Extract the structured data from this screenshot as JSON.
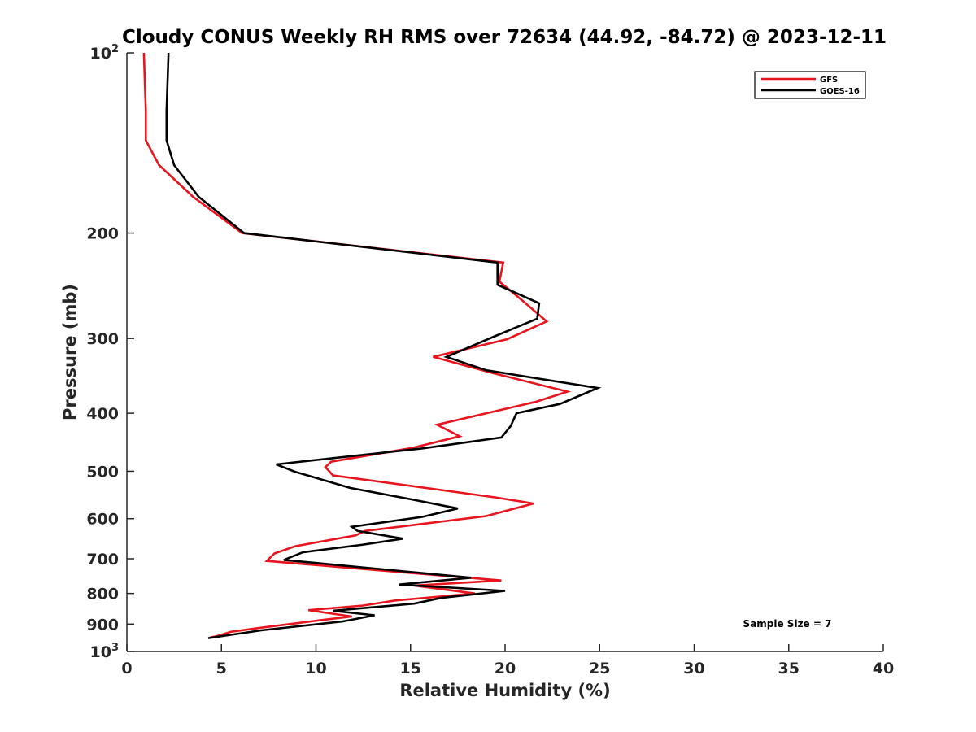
{
  "chart_data": {
    "type": "line",
    "title": "Cloudy CONUS Weekly RH RMS over 72634 (44.92, -84.72) @ 2023-12-11",
    "xlabel": "Relative Humidity (%)",
    "ylabel": "Pressure (mb)",
    "xlim": [
      0,
      40
    ],
    "ylim": [
      100,
      1000
    ],
    "y_scale": "log",
    "y_reversed": true,
    "x_ticks": [
      "0",
      "5",
      "10",
      "15",
      "20",
      "25",
      "30",
      "35",
      "40"
    ],
    "y_ticks": [
      {
        "value": 100,
        "base": "10",
        "exp": "2"
      },
      {
        "value": 200,
        "label": "200"
      },
      {
        "value": 300,
        "label": "300"
      },
      {
        "value": 400,
        "label": "400"
      },
      {
        "value": 500,
        "label": "500"
      },
      {
        "value": 600,
        "label": "600"
      },
      {
        "value": 700,
        "label": "700"
      },
      {
        "value": 800,
        "label": "800"
      },
      {
        "value": 900,
        "label": "900"
      },
      {
        "value": 1000,
        "base": "10",
        "exp": "3"
      }
    ],
    "grid": false,
    "legend_position": "top-right",
    "annotation": "Sample Size = 7",
    "series": [
      {
        "name": "GFS",
        "color": "#e8141e",
        "points": [
          [
            0.9,
            100
          ],
          [
            1.0,
            125
          ],
          [
            1.0,
            140
          ],
          [
            1.7,
            154
          ],
          [
            3.5,
            174
          ],
          [
            6.1,
            200
          ],
          [
            19.9,
            224
          ],
          [
            19.7,
            241
          ],
          [
            20.9,
            259
          ],
          [
            22.2,
            281
          ],
          [
            20.1,
            301
          ],
          [
            16.2,
            322
          ],
          [
            19.4,
            343
          ],
          [
            23.3,
            368
          ],
          [
            21.6,
            383
          ],
          [
            16.4,
            418
          ],
          [
            17.6,
            437
          ],
          [
            15.1,
            457
          ],
          [
            10.8,
            482
          ],
          [
            10.5,
            492
          ],
          [
            10.9,
            508
          ],
          [
            19.5,
            553
          ],
          [
            21.5,
            566
          ],
          [
            19.0,
            594
          ],
          [
            12.6,
            629
          ],
          [
            12.1,
            640
          ],
          [
            8.9,
            667
          ],
          [
            7.8,
            686
          ],
          [
            7.4,
            706
          ],
          [
            19.8,
            761
          ],
          [
            15.2,
            776
          ],
          [
            18.4,
            800
          ],
          [
            14.2,
            822
          ],
          [
            12.5,
            838
          ],
          [
            9.6,
            853
          ],
          [
            11.9,
            874
          ],
          [
            10.3,
            886
          ],
          [
            6.9,
            914
          ],
          [
            5.5,
            927
          ],
          [
            4.8,
            942
          ],
          [
            4.4,
            948
          ]
        ]
      },
      {
        "name": "GOES-16",
        "color": "#000000",
        "points": [
          [
            2.2,
            100
          ],
          [
            2.1,
            125
          ],
          [
            2.1,
            140
          ],
          [
            2.5,
            154
          ],
          [
            3.8,
            174
          ],
          [
            6.2,
            200
          ],
          [
            19.6,
            224
          ],
          [
            19.6,
            244
          ],
          [
            21.8,
            262
          ],
          [
            21.7,
            278
          ],
          [
            19.4,
            298
          ],
          [
            16.9,
            322
          ],
          [
            19.0,
            339
          ],
          [
            24.9,
            363
          ],
          [
            22.9,
            386
          ],
          [
            20.6,
            400
          ],
          [
            20.3,
            420
          ],
          [
            19.8,
            439
          ],
          [
            15.6,
            458
          ],
          [
            7.9,
            487
          ],
          [
            8.9,
            501
          ],
          [
            11.8,
            533
          ],
          [
            15.3,
            559
          ],
          [
            17.5,
            577
          ],
          [
            15.6,
            596
          ],
          [
            11.9,
            619
          ],
          [
            12.2,
            629
          ],
          [
            14.6,
            648
          ],
          [
            12.5,
            663
          ],
          [
            9.3,
            683
          ],
          [
            8.3,
            703
          ],
          [
            18.2,
            753
          ],
          [
            14.4,
            773
          ],
          [
            20.0,
            792
          ],
          [
            16.6,
            814
          ],
          [
            15.2,
            832
          ],
          [
            10.9,
            855
          ],
          [
            13.1,
            870
          ],
          [
            11.4,
            891
          ],
          [
            7.1,
            922
          ],
          [
            4.3,
            950
          ]
        ]
      }
    ]
  }
}
